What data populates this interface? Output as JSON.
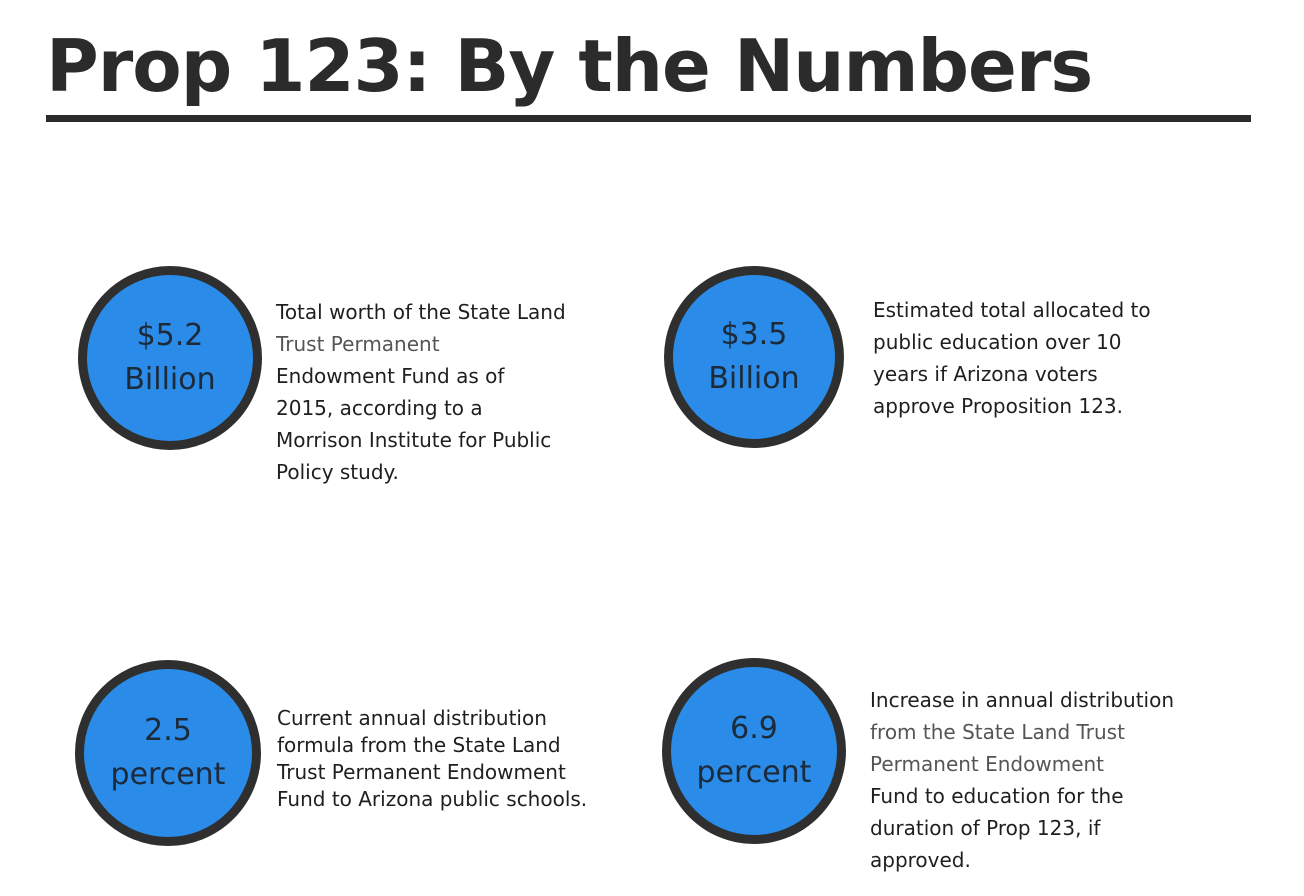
{
  "page": {
    "title": "Prop 123: By the Numbers"
  },
  "stats": [
    {
      "value": "$5.2",
      "unit": "Billion",
      "lines": [
        "Total worth of the State Land",
        "Trust Permanent",
        "Endowment Fund  as of",
        "2015, according to a",
        "Morrison Institute for Public",
        "Policy study."
      ]
    },
    {
      "value": "$3.5",
      "unit": "Billion",
      "lines": [
        "Estimated total allocated to",
        "public education over 10",
        "years if Arizona voters",
        "approve Proposition 123."
      ]
    },
    {
      "value": "2.5",
      "unit": "percent",
      "lines": [
        "Current annual distribution",
        "formula from the State Land",
        "Trust Permanent Endowment",
        "Fund to Arizona public schools."
      ]
    },
    {
      "value": "6.9",
      "unit": "percent",
      "lines": [
        "Increase in annual distribution",
        "from the State Land Trust",
        "Permanent Endowment",
        "Fund  to education for the",
        "duration of Prop 123, if",
        "approved."
      ]
    }
  ],
  "colors": {
    "circle_fill": "#2a8ce8",
    "circle_border": "#2f2f2f",
    "title": "#2b2b2b"
  }
}
